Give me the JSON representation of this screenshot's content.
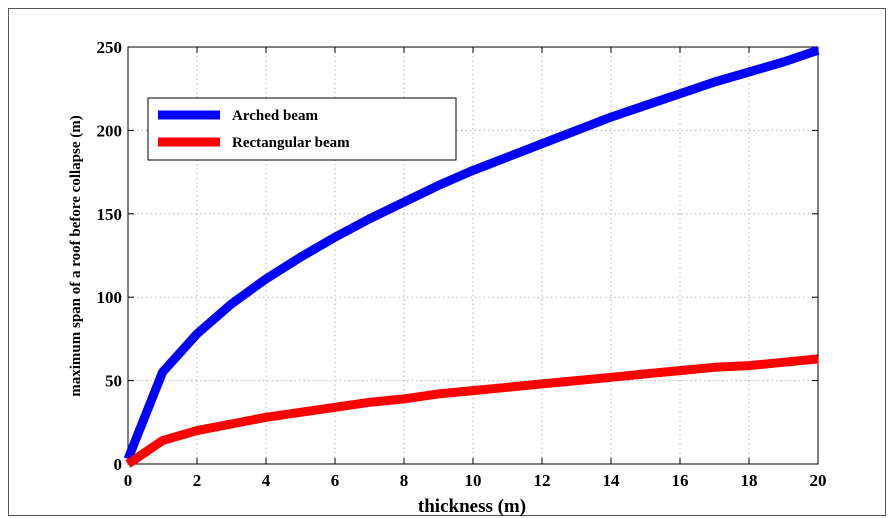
{
  "chart_data": {
    "type": "line",
    "title": "",
    "xlabel": "thickness (m)",
    "ylabel": "maximum span of a roof before collapse (m)",
    "xlim": [
      0,
      20
    ],
    "ylim": [
      0,
      250
    ],
    "x_ticks": [
      0,
      2,
      4,
      6,
      8,
      10,
      12,
      14,
      16,
      18,
      20
    ],
    "y_ticks": [
      0,
      50,
      100,
      150,
      200,
      250
    ],
    "grid": true,
    "legend_position": "top-left",
    "x": [
      0,
      1,
      2,
      3,
      4,
      5,
      6,
      7,
      8,
      9,
      10,
      11,
      12,
      13,
      14,
      15,
      16,
      17,
      18,
      19,
      20
    ],
    "series": [
      {
        "name": "Arched beam",
        "color": "#0000ff",
        "values": [
          3,
          55,
          78,
          96,
          111,
          124,
          136,
          147,
          157,
          167,
          176,
          184,
          192,
          200,
          208,
          215,
          222,
          229,
          235,
          241,
          248
        ]
      },
      {
        "name": "Rectangular beam",
        "color": "#ff0000",
        "values": [
          0,
          14,
          20,
          24,
          28,
          31,
          34,
          37,
          39,
          42,
          44,
          46,
          48,
          50,
          52,
          54,
          56,
          58,
          59,
          61,
          63
        ]
      }
    ]
  }
}
